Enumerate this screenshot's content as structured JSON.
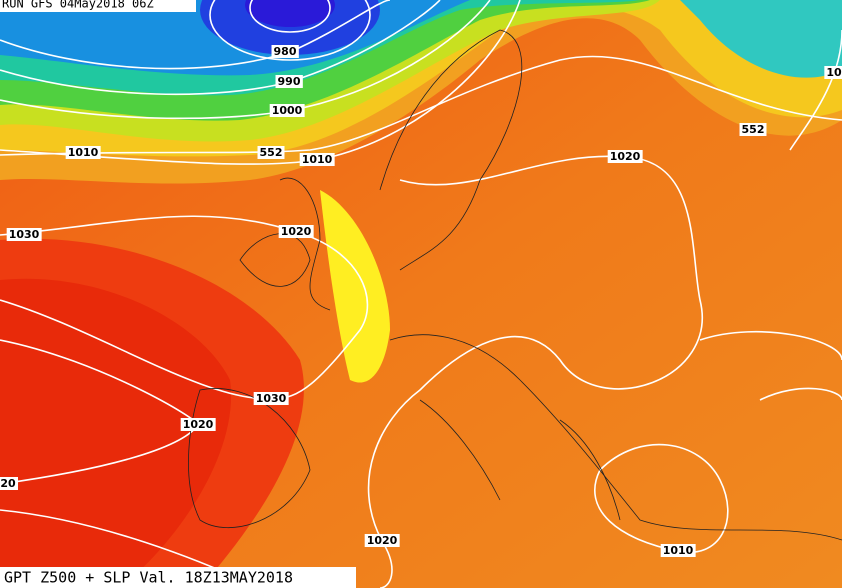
{
  "header": {
    "run": "RUN GFS 04May2018 06Z"
  },
  "footer": {
    "caption": "GPT Z500 + SLP Val. 18Z13MAY2018"
  },
  "contour_labels": [
    "980",
    "990",
    "1000",
    "1010",
    "552",
    "1010",
    "1020",
    "552",
    "10",
    "1020",
    "1030",
    "1030",
    "1020",
    "20",
    "1020",
    "1010"
  ]
}
